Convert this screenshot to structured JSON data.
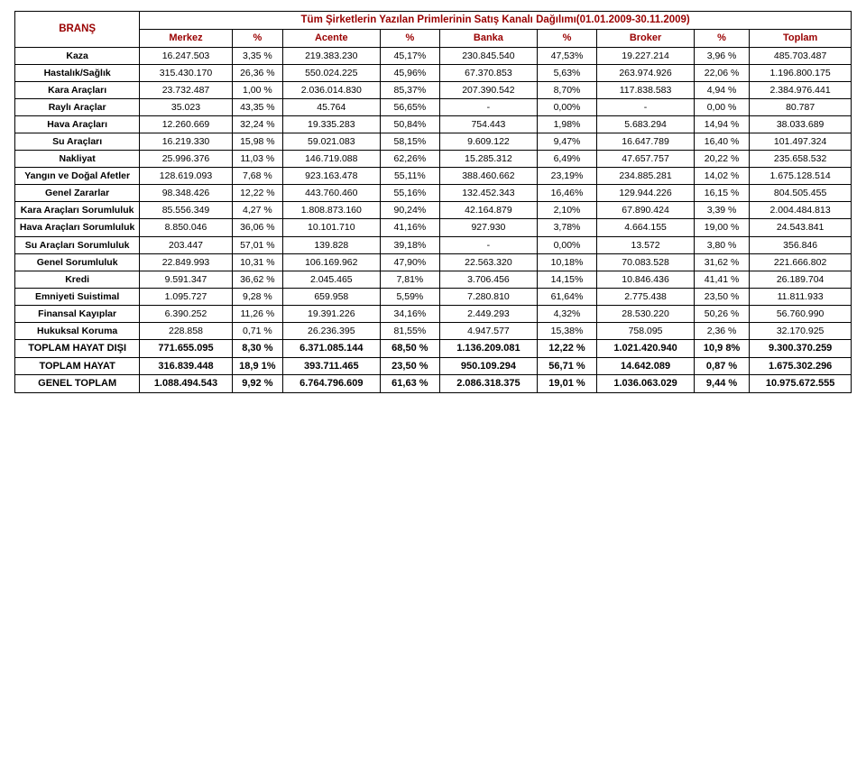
{
  "header": {
    "brans": "BRANŞ",
    "title": "Tüm Şirketlerin Yazılan Primlerinin Satış Kanalı Dağılımı(01.01.2009-30.11.2009)"
  },
  "columns": [
    "Merkez",
    "%",
    "Acente",
    "%",
    "Banka",
    "%",
    "Broker",
    "%",
    "Toplam"
  ],
  "rows": [
    {
      "label": "Kaza",
      "cells": [
        "16.247.503",
        "3,35 %",
        "219.383.230",
        "45,17%",
        "230.845.540",
        "47,53%",
        "19.227.214",
        "3,96 %",
        "485.703.487"
      ]
    },
    {
      "label": "Hastalık/Sağlık",
      "cells": [
        "315.430.170",
        "26,36 %",
        "550.024.225",
        "45,96%",
        "67.370.853",
        "5,63%",
        "263.974.926",
        "22,06 %",
        "1.196.800.175"
      ]
    },
    {
      "label": "Kara Araçları",
      "cells": [
        "23.732.487",
        "1,00 %",
        "2.036.014.830",
        "85,37%",
        "207.390.542",
        "8,70%",
        "117.838.583",
        "4,94 %",
        "2.384.976.441"
      ]
    },
    {
      "label": "Raylı Araçlar",
      "cells": [
        "35.023",
        "43,35 %",
        "45.764",
        "56,65%",
        "-",
        "0,00%",
        "-",
        "0,00 %",
        "80.787"
      ]
    },
    {
      "label": "Hava Araçları",
      "cells": [
        "12.260.669",
        "32,24 %",
        "19.335.283",
        "50,84%",
        "754.443",
        "1,98%",
        "5.683.294",
        "14,94 %",
        "38.033.689"
      ]
    },
    {
      "label": "Su Araçları",
      "cells": [
        "16.219.330",
        "15,98 %",
        "59.021.083",
        "58,15%",
        "9.609.122",
        "9,47%",
        "16.647.789",
        "16,40 %",
        "101.497.324"
      ]
    },
    {
      "label": "Nakliyat",
      "cells": [
        "25.996.376",
        "11,03 %",
        "146.719.088",
        "62,26%",
        "15.285.312",
        "6,49%",
        "47.657.757",
        "20,22 %",
        "235.658.532"
      ]
    },
    {
      "label": "Yangın ve Doğal Afetler",
      "cells": [
        "128.619.093",
        "7,68 %",
        "923.163.478",
        "55,11%",
        "388.460.662",
        "23,19%",
        "234.885.281",
        "14,02 %",
        "1.675.128.514"
      ]
    },
    {
      "label": "Genel Zararlar",
      "cells": [
        "98.348.426",
        "12,22 %",
        "443.760.460",
        "55,16%",
        "132.452.343",
        "16,46%",
        "129.944.226",
        "16,15 %",
        "804.505.455"
      ]
    },
    {
      "label": "Kara Araçları Sorumluluk",
      "cells": [
        "85.556.349",
        "4,27 %",
        "1.808.873.160",
        "90,24%",
        "42.164.879",
        "2,10%",
        "67.890.424",
        "3,39 %",
        "2.004.484.813"
      ]
    },
    {
      "label": "Hava Araçları Sorumluluk",
      "cells": [
        "8.850.046",
        "36,06 %",
        "10.101.710",
        "41,16%",
        "927.930",
        "3,78%",
        "4.664.155",
        "19,00 %",
        "24.543.841"
      ]
    },
    {
      "label": "Su Araçları Sorumluluk",
      "cells": [
        "203.447",
        "57,01 %",
        "139.828",
        "39,18%",
        "-",
        "0,00%",
        "13.572",
        "3,80 %",
        "356.846"
      ]
    },
    {
      "label": "Genel Sorumluluk",
      "cells": [
        "22.849.993",
        "10,31 %",
        "106.169.962",
        "47,90%",
        "22.563.320",
        "10,18%",
        "70.083.528",
        "31,62 %",
        "221.666.802"
      ]
    },
    {
      "label": "Kredi",
      "cells": [
        "9.591.347",
        "36,62 %",
        "2.045.465",
        "7,81%",
        "3.706.456",
        "14,15%",
        "10.846.436",
        "41,41 %",
        "26.189.704"
      ]
    },
    {
      "label": "Emniyeti Suistimal",
      "cells": [
        "1.095.727",
        "9,28 %",
        "659.958",
        "5,59%",
        "7.280.810",
        "61,64%",
        "2.775.438",
        "23,50 %",
        "11.811.933"
      ]
    },
    {
      "label": "Finansal Kayıplar",
      "cells": [
        "6.390.252",
        "11,26 %",
        "19.391.226",
        "34,16%",
        "2.449.293",
        "4,32%",
        "28.530.220",
        "50,26 %",
        "56.760.990"
      ]
    },
    {
      "label": "Hukuksal Koruma",
      "cells": [
        "228.858",
        "0,71 %",
        "26.236.395",
        "81,55%",
        "4.947.577",
        "15,38%",
        "758.095",
        "2,36 %",
        "32.170.925"
      ]
    },
    {
      "label": "TOPLAM HAYAT DIŞI",
      "bold": true,
      "cells": [
        "771.655.095",
        "8,30 %",
        "6.371.085.144",
        "68,50 %",
        "1.136.209.081",
        "12,22 %",
        "1.021.420.940",
        "10,9 8%",
        "9.300.370.259"
      ]
    },
    {
      "label": "TOPLAM HAYAT",
      "bold": true,
      "cells": [
        "316.839.448",
        "18,9 1%",
        "393.711.465",
        "23,50 %",
        "950.109.294",
        "56,71 %",
        "14.642.089",
        "0,87 %",
        "1.675.302.296"
      ]
    },
    {
      "label": "GENEL TOPLAM",
      "bold": true,
      "cells": [
        "1.088.494.543",
        "9,92 %",
        "6.764.796.609",
        "61,63 %",
        "2.086.318.375",
        "19,01 %",
        "1.036.063.029",
        "9,44 %",
        "10.975.672.555"
      ]
    }
  ],
  "style": {
    "heading_color": "#990000",
    "border_color": "#000000",
    "background_color": "#ffffff",
    "font_family": "Arial",
    "font_size_body": 10.5,
    "font_size_heading": 11.5,
    "font_size_colhead": 11
  }
}
